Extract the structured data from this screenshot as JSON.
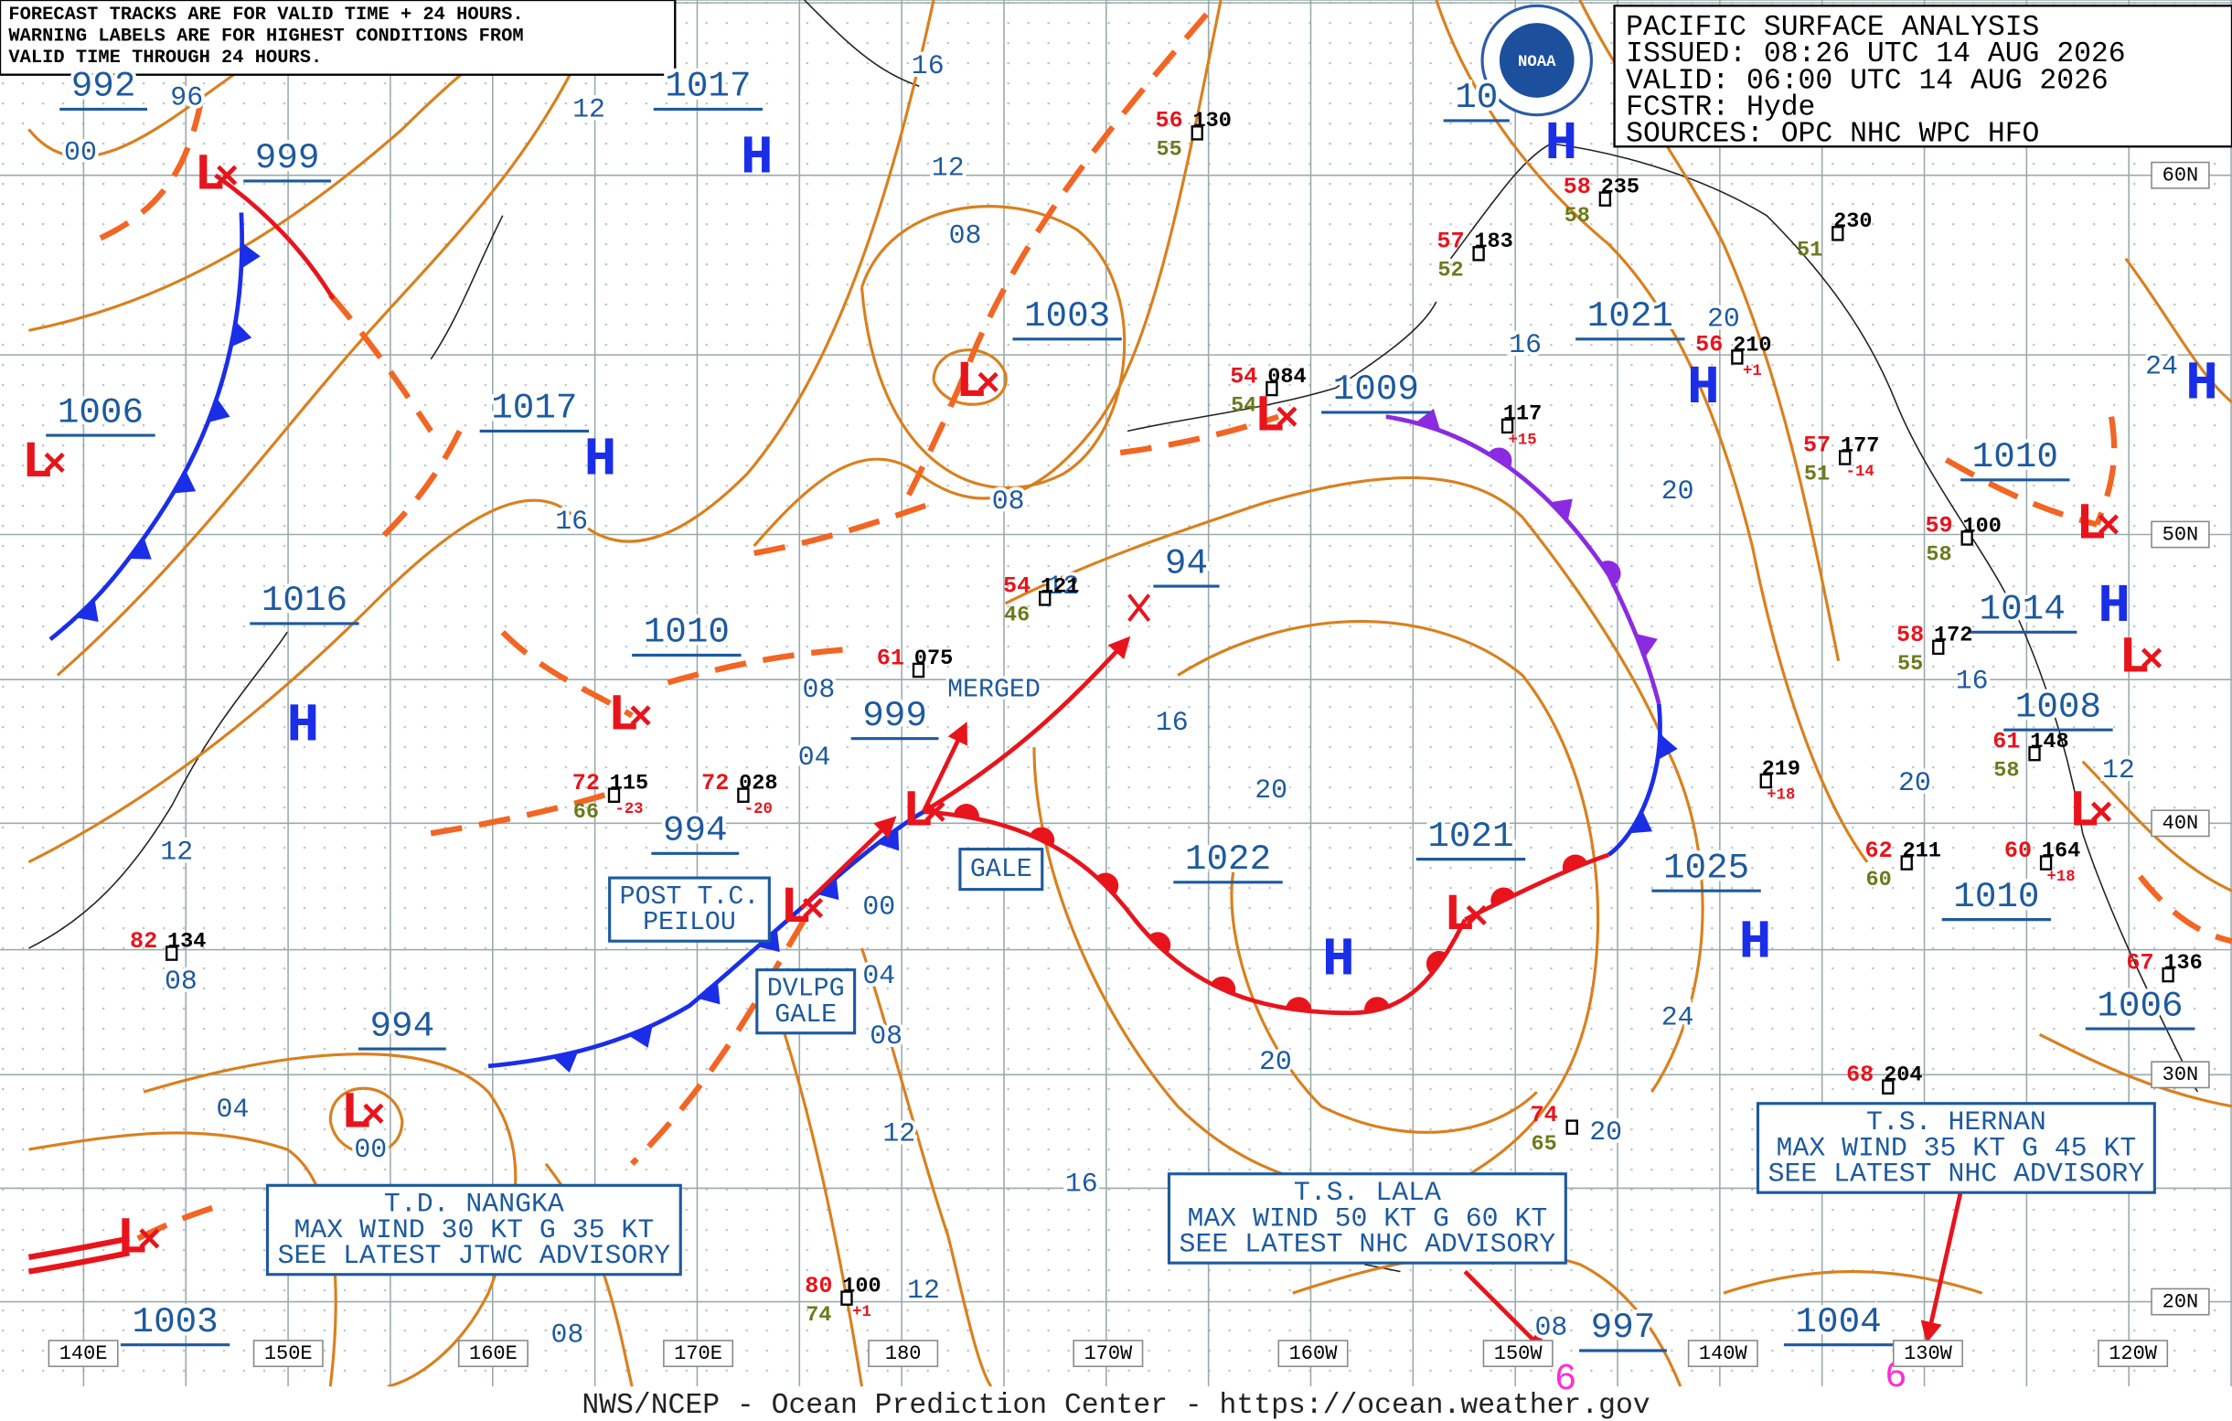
{
  "notes": [
    "FORECAST TRACKS ARE FOR VALID TIME + 24 HOURS.",
    "WARNING LABELS ARE FOR HIGHEST CONDITIONS FROM",
    "VALID TIME THROUGH 24 HOURS."
  ],
  "header": {
    "lines": [
      "PACIFIC SURFACE ANALYSIS",
      "ISSUED: 08:26 UTC 14 AUG 2026",
      "VALID:  06:00 UTC 14 AUG 2026",
      "FCSTR:  Hyde",
      "SOURCES: OPC NHC WPC HFO"
    ],
    "logo": "NOAA"
  },
  "center_pressures": [
    "992",
    "999",
    "1017",
    "10",
    "1006",
    "1017",
    "1003",
    "1009",
    "1021",
    "1010",
    "1016",
    "1010",
    "94",
    "999",
    "1014",
    "1008",
    "994",
    "1022",
    "1021",
    "1025",
    "1010",
    "994",
    "1006",
    "1003",
    "997",
    "1004"
  ],
  "isobar_labels": [
    "96",
    "00",
    "12",
    "16",
    "12",
    "08",
    "16",
    "08",
    "16",
    "20",
    "20",
    "24",
    "08",
    "04",
    "16",
    "20",
    "20",
    "16",
    "12",
    "12",
    "08",
    "00",
    "04",
    "08",
    "24",
    "20",
    "04",
    "00",
    "12",
    "16",
    "20",
    "12",
    "08",
    "08",
    "12"
  ],
  "highs": [
    "H",
    "H",
    "H",
    "H",
    "H",
    "H",
    "H",
    "H",
    "H"
  ],
  "lows": [
    "L",
    "L",
    "L",
    "L",
    "L",
    "L",
    "L",
    "L",
    "L",
    "L",
    "L",
    "L",
    "L"
  ],
  "labels": {
    "merged": "MERGED",
    "gale": "GALE",
    "post_tc": [
      "POST T.C.",
      "PEILOU"
    ],
    "dvlpg": [
      "DVLPG",
      "GALE"
    ]
  },
  "advisories": [
    {
      "lines": [
        "T.D. NANGKA",
        "MAX WIND 30 KT G 35 KT",
        "SEE LATEST JTWC ADVISORY"
      ]
    },
    {
      "lines": [
        "T.S. LALA",
        "MAX WIND 50 KT G 60 KT",
        "SEE LATEST NHC ADVISORY"
      ]
    },
    {
      "lines": [
        "T.S. HERNAN",
        "MAX WIND 35 KT G 45 KT",
        "SEE LATEST NHC ADVISORY"
      ]
    }
  ],
  "tropical_symbols": [
    "6",
    "6"
  ],
  "latitudes": [
    "60N",
    "50N",
    "40N",
    "30N",
    "20N"
  ],
  "longitudes": [
    "140E",
    "150E",
    "160E",
    "170E",
    "180",
    "170W",
    "160W",
    "150W",
    "140W",
    "130W",
    "120W"
  ],
  "stations": [
    {
      "temp": "56",
      "pressure": "130",
      "dew": "55"
    },
    {
      "temp": "58",
      "pressure": "235",
      "dew": "58"
    },
    {
      "temp": "57",
      "pressure": "183",
      "dew": "52"
    },
    {
      "temp": "56",
      "pressure": "210",
      "tend": "+1"
    },
    {
      "pressure": "117",
      "tend": "+15"
    },
    {
      "temp": "57",
      "pressure": "177",
      "dew": "51",
      "tend": "-14"
    },
    {
      "temp": "61",
      "pressure": "075"
    },
    {
      "temp": "54",
      "pressure": "121",
      "dew": "46"
    },
    {
      "temp": "72",
      "pressure": "028",
      "tend": "-20"
    },
    {
      "temp": "72",
      "pressure": "115",
      "dew": "66",
      "tend": "-23"
    },
    {
      "pressure": "219",
      "tend": "+18"
    },
    {
      "temp": "62",
      "pressure": "211",
      "dew": "60"
    },
    {
      "temp": "60",
      "pressure": "164",
      "tend": "+18"
    },
    {
      "temp": "82",
      "pressure": "134"
    },
    {
      "temp": "68",
      "pressure": "204"
    },
    {
      "temp": "74",
      "dew": "65"
    },
    {
      "temp": "80",
      "pressure": "100",
      "dew": "74",
      "tend": "+1"
    },
    {
      "temp": "59",
      "pressure": "100",
      "dew": "58"
    },
    {
      "temp": "58",
      "pressure": "172",
      "dew": "55"
    },
    {
      "temp": "61",
      "pressure": "148",
      "dew": "58"
    },
    {
      "temp": "67",
      "pressure": "136"
    },
    {
      "temp": "54",
      "pressure": "084",
      "dew": "54"
    },
    {
      "pressure": "230",
      "dew": "51"
    }
  ],
  "footer": "NWS/NCEP - Ocean Prediction Center - https://ocean.weather.gov"
}
